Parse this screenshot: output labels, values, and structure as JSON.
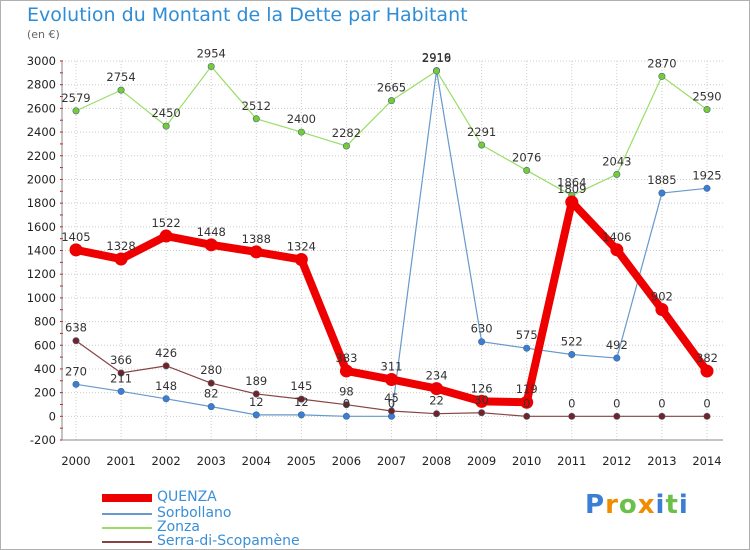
{
  "header": {
    "title": "Evolution du Montant de la Dette par Habitant",
    "unit": "(en €)"
  },
  "logo": {
    "text": "Proxiti"
  },
  "colors": {
    "title": "#2f8dd6",
    "grid": "#cccccc",
    "axis_tick": "#cc0000"
  },
  "chart_data": {
    "type": "line",
    "x": [
      "2000",
      "2001",
      "2002",
      "2003",
      "2004",
      "2005",
      "2006",
      "2007",
      "2008",
      "2009",
      "2010",
      "2011",
      "2012",
      "2013",
      "2014"
    ],
    "ylim": [
      -200,
      3000
    ],
    "yticks": [
      -200,
      0,
      200,
      400,
      600,
      800,
      1000,
      1200,
      1400,
      1600,
      1800,
      2000,
      2200,
      2400,
      2600,
      2800,
      3000
    ],
    "grid": true,
    "legend_position": "bottom-left",
    "series": [
      {
        "name": "QUENZA",
        "color": "#ee0000",
        "marker": "#ee0000",
        "width": 8,
        "values": [
          1405,
          1328,
          1522,
          1448,
          1388,
          1324,
          383,
          311,
          234,
          126,
          119,
          1809,
          1406,
          902,
          382
        ],
        "labels": [
          "1405",
          "1328",
          "1522",
          "1448",
          "1388",
          "1324",
          "383",
          "311",
          "234",
          "126",
          "119",
          "1809",
          "1406",
          "902",
          "382"
        ]
      },
      {
        "name": "Sorbollano",
        "color": "#6699cc",
        "marker": "#3a7fd5",
        "width": 1.2,
        "values": [
          270,
          211,
          148,
          82,
          12,
          12,
          0,
          0,
          2919,
          630,
          575,
          522,
          492,
          1885,
          1925
        ],
        "labels": [
          "270",
          "211",
          "148",
          "82",
          "12",
          "12",
          "0",
          "0",
          "2919",
          "630",
          "575",
          "522",
          "492",
          "1885",
          "1925"
        ]
      },
      {
        "name": "Zonza",
        "color": "#99dd66",
        "marker": "#77cc33",
        "width": 1.2,
        "values": [
          2579,
          2754,
          2450,
          2954,
          2512,
          2400,
          2282,
          2665,
          2916,
          2291,
          2076,
          1864,
          2043,
          2870,
          2590
        ],
        "labels": [
          "2579",
          "2754",
          "2450",
          "2954",
          "2512",
          "2400",
          "2282",
          "2665",
          "2916",
          "2291",
          "2076",
          "1864",
          "2043",
          "2870",
          "2590"
        ]
      },
      {
        "name": "Serra-di-Scopamène",
        "color": "#884444",
        "marker": "#772222",
        "width": 1.2,
        "values": [
          638,
          366,
          426,
          280,
          189,
          145,
          98,
          45,
          22,
          30,
          0,
          0,
          0,
          0,
          0
        ],
        "labels": [
          "638",
          "366",
          "426",
          "280",
          "189",
          "145",
          "98",
          "45",
          "22",
          "30",
          "0",
          "0",
          "0",
          "0",
          "0"
        ]
      }
    ]
  }
}
